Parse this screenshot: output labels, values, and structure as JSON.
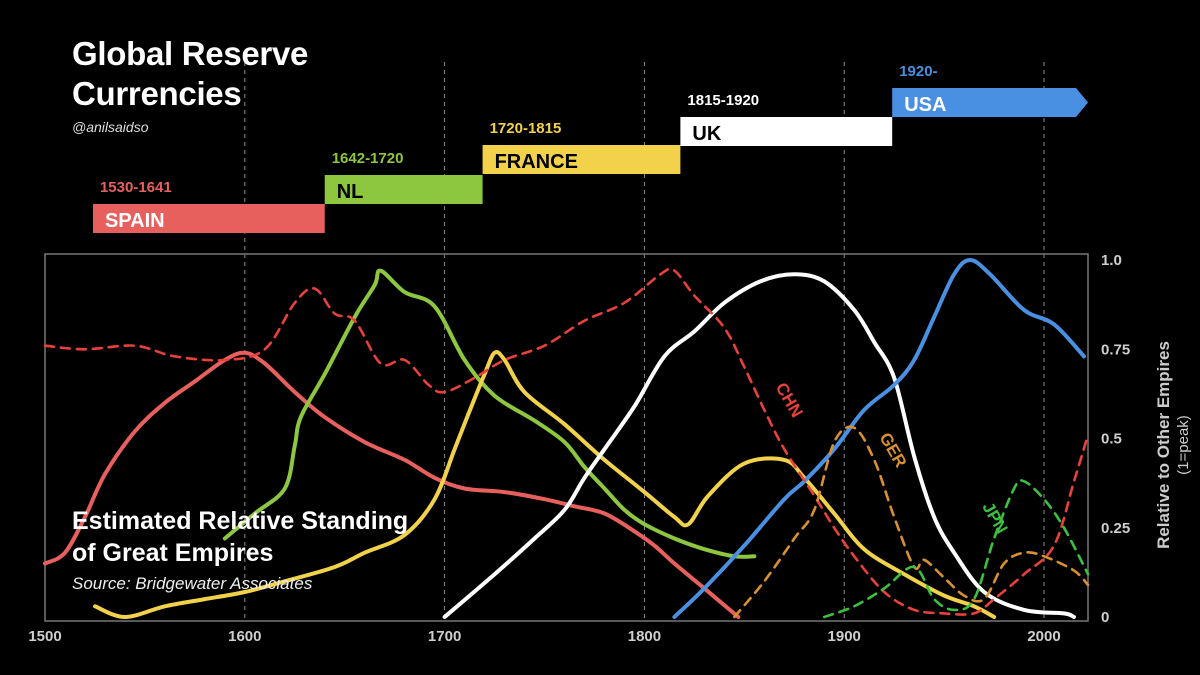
{
  "header": {
    "title_line1": "Global Reserve",
    "title_line2": "Currencies",
    "handle": "@anilsaidso"
  },
  "caption": {
    "line1": "Estimated Relative Standing",
    "line2": "of Great Empires",
    "source": "Source: Bridgewater Associates"
  },
  "chart_data": {
    "type": "line",
    "title": "Global Reserve Currencies",
    "subtitle": "Estimated Relative Standing of Great Empires",
    "xlabel": "",
    "ylabel": "Relative to Other Empires",
    "ylabel_note": "(1=peak)",
    "xlim": [
      1500,
      2022
    ],
    "ylim": [
      0,
      1
    ],
    "x_ticks": [
      "1500",
      "1600",
      "1700",
      "1800",
      "1900",
      "2000"
    ],
    "y_ticks": [
      "1.0",
      "0.75",
      "0.5",
      "0.25",
      "0"
    ],
    "reserve_periods": [
      {
        "name": "SPAIN",
        "years": "1530-1641",
        "start": 1524,
        "end": 1640,
        "color": "#e8605e"
      },
      {
        "name": "NL",
        "years": "1642-1720",
        "start": 1640,
        "end": 1719,
        "color": "#8dc63f"
      },
      {
        "name": "FRANCE",
        "years": "1720-1815",
        "start": 1719,
        "end": 1818,
        "color": "#f2d24a"
      },
      {
        "name": "UK",
        "years": "1815-1920",
        "start": 1818,
        "end": 1924,
        "color": "#ffffff"
      },
      {
        "name": "USA",
        "years": "1920-",
        "start": 1924,
        "end": 2022,
        "color": "#4a90e2",
        "arrow": true
      }
    ],
    "series": [
      {
        "name": "SPAIN",
        "color": "#e8605e",
        "dashed": false,
        "points": [
          [
            1500,
            0.15
          ],
          [
            1510,
            0.18
          ],
          [
            1520,
            0.28
          ],
          [
            1530,
            0.4
          ],
          [
            1545,
            0.52
          ],
          [
            1560,
            0.6
          ],
          [
            1575,
            0.66
          ],
          [
            1590,
            0.72
          ],
          [
            1600,
            0.74
          ],
          [
            1610,
            0.71
          ],
          [
            1625,
            0.63
          ],
          [
            1640,
            0.56
          ],
          [
            1660,
            0.49
          ],
          [
            1680,
            0.44
          ],
          [
            1695,
            0.39
          ],
          [
            1710,
            0.36
          ],
          [
            1730,
            0.35
          ],
          [
            1750,
            0.33
          ],
          [
            1765,
            0.31
          ],
          [
            1780,
            0.29
          ],
          [
            1795,
            0.24
          ],
          [
            1805,
            0.2
          ],
          [
            1815,
            0.15
          ],
          [
            1830,
            0.08
          ],
          [
            1847,
            0.0
          ]
        ]
      },
      {
        "name": "NL",
        "color": "#8dc63f",
        "dashed": false,
        "points": [
          [
            1590,
            0.22
          ],
          [
            1605,
            0.29
          ],
          [
            1620,
            0.36
          ],
          [
            1625,
            0.48
          ],
          [
            1628,
            0.56
          ],
          [
            1640,
            0.68
          ],
          [
            1655,
            0.84
          ],
          [
            1665,
            0.93
          ],
          [
            1668,
            0.97
          ],
          [
            1680,
            0.91
          ],
          [
            1695,
            0.87
          ],
          [
            1710,
            0.72
          ],
          [
            1725,
            0.62
          ],
          [
            1745,
            0.55
          ],
          [
            1760,
            0.49
          ],
          [
            1770,
            0.42
          ],
          [
            1780,
            0.36
          ],
          [
            1790,
            0.3
          ],
          [
            1800,
            0.26
          ],
          [
            1815,
            0.22
          ],
          [
            1830,
            0.19
          ],
          [
            1845,
            0.17
          ],
          [
            1855,
            0.17
          ]
        ]
      },
      {
        "name": "FRANCE",
        "color": "#f2d24a",
        "dashed": false,
        "points": [
          [
            1525,
            0.03
          ],
          [
            1540,
            0.0
          ],
          [
            1560,
            0.03
          ],
          [
            1580,
            0.05
          ],
          [
            1600,
            0.07
          ],
          [
            1620,
            0.1
          ],
          [
            1645,
            0.14
          ],
          [
            1660,
            0.18
          ],
          [
            1680,
            0.23
          ],
          [
            1695,
            0.33
          ],
          [
            1705,
            0.47
          ],
          [
            1712,
            0.57
          ],
          [
            1720,
            0.68
          ],
          [
            1725,
            0.74
          ],
          [
            1730,
            0.72
          ],
          [
            1740,
            0.63
          ],
          [
            1760,
            0.54
          ],
          [
            1780,
            0.44
          ],
          [
            1800,
            0.35
          ],
          [
            1815,
            0.28
          ],
          [
            1822,
            0.26
          ],
          [
            1832,
            0.34
          ],
          [
            1850,
            0.43
          ],
          [
            1870,
            0.44
          ],
          [
            1880,
            0.39
          ],
          [
            1895,
            0.29
          ],
          [
            1910,
            0.19
          ],
          [
            1930,
            0.12
          ],
          [
            1950,
            0.06
          ],
          [
            1965,
            0.03
          ],
          [
            1975,
            0.0
          ]
        ]
      },
      {
        "name": "UK",
        "color": "#ffffff",
        "dashed": false,
        "points": [
          [
            1700,
            0.0
          ],
          [
            1725,
            0.12
          ],
          [
            1745,
            0.22
          ],
          [
            1760,
            0.3
          ],
          [
            1770,
            0.39
          ],
          [
            1780,
            0.47
          ],
          [
            1795,
            0.59
          ],
          [
            1810,
            0.73
          ],
          [
            1825,
            0.8
          ],
          [
            1840,
            0.88
          ],
          [
            1858,
            0.94
          ],
          [
            1875,
            0.96
          ],
          [
            1890,
            0.94
          ],
          [
            1905,
            0.86
          ],
          [
            1915,
            0.77
          ],
          [
            1925,
            0.67
          ],
          [
            1935,
            0.45
          ],
          [
            1945,
            0.28
          ],
          [
            1955,
            0.18
          ],
          [
            1970,
            0.07
          ],
          [
            1990,
            0.02
          ],
          [
            2010,
            0.01
          ],
          [
            2015,
            0.0
          ]
        ]
      },
      {
        "name": "USA",
        "color": "#4a90e2",
        "dashed": false,
        "points": [
          [
            1815,
            0.0
          ],
          [
            1830,
            0.08
          ],
          [
            1850,
            0.2
          ],
          [
            1870,
            0.33
          ],
          [
            1880,
            0.38
          ],
          [
            1895,
            0.47
          ],
          [
            1910,
            0.58
          ],
          [
            1925,
            0.65
          ],
          [
            1935,
            0.72
          ],
          [
            1945,
            0.84
          ],
          [
            1955,
            0.96
          ],
          [
            1963,
            1.0
          ],
          [
            1973,
            0.96
          ],
          [
            1990,
            0.86
          ],
          [
            2005,
            0.82
          ],
          [
            2020,
            0.73
          ]
        ]
      },
      {
        "name": "CHN",
        "color": "#e8403a",
        "dashed": true,
        "points": [
          [
            1500,
            0.76
          ],
          [
            1520,
            0.75
          ],
          [
            1545,
            0.76
          ],
          [
            1565,
            0.73
          ],
          [
            1590,
            0.72
          ],
          [
            1610,
            0.75
          ],
          [
            1625,
            0.88
          ],
          [
            1635,
            0.92
          ],
          [
            1645,
            0.85
          ],
          [
            1655,
            0.83
          ],
          [
            1668,
            0.71
          ],
          [
            1680,
            0.72
          ],
          [
            1692,
            0.65
          ],
          [
            1700,
            0.63
          ],
          [
            1715,
            0.67
          ],
          [
            1730,
            0.72
          ],
          [
            1750,
            0.76
          ],
          [
            1770,
            0.83
          ],
          [
            1790,
            0.88
          ],
          [
            1808,
            0.96
          ],
          [
            1815,
            0.97
          ],
          [
            1825,
            0.9
          ],
          [
            1840,
            0.81
          ],
          [
            1850,
            0.7
          ],
          [
            1860,
            0.58
          ],
          [
            1870,
            0.47
          ],
          [
            1885,
            0.34
          ],
          [
            1895,
            0.25
          ],
          [
            1905,
            0.17
          ],
          [
            1920,
            0.07
          ],
          [
            1935,
            0.02
          ],
          [
            1950,
            0.01
          ],
          [
            1965,
            0.01
          ],
          [
            1975,
            0.05
          ],
          [
            1990,
            0.12
          ],
          [
            2005,
            0.2
          ],
          [
            2015,
            0.38
          ],
          [
            2022,
            0.51
          ]
        ]
      },
      {
        "name": "GER",
        "color": "#d89030",
        "dashed": true,
        "points": [
          [
            1845,
            0.0
          ],
          [
            1860,
            0.1
          ],
          [
            1875,
            0.22
          ],
          [
            1885,
            0.3
          ],
          [
            1895,
            0.49
          ],
          [
            1905,
            0.53
          ],
          [
            1915,
            0.44
          ],
          [
            1925,
            0.28
          ],
          [
            1935,
            0.14
          ],
          [
            1940,
            0.16
          ],
          [
            1950,
            0.11
          ],
          [
            1960,
            0.06
          ],
          [
            1970,
            0.05
          ],
          [
            1980,
            0.15
          ],
          [
            1990,
            0.18
          ],
          [
            2000,
            0.17
          ],
          [
            2015,
            0.13
          ],
          [
            2022,
            0.09
          ]
        ]
      },
      {
        "name": "JPN",
        "color": "#3cc13c",
        "dashed": true,
        "points": [
          [
            1890,
            0.0
          ],
          [
            1905,
            0.03
          ],
          [
            1920,
            0.08
          ],
          [
            1935,
            0.14
          ],
          [
            1945,
            0.05
          ],
          [
            1955,
            0.02
          ],
          [
            1965,
            0.05
          ],
          [
            1975,
            0.22
          ],
          [
            1985,
            0.36
          ],
          [
            1990,
            0.38
          ],
          [
            2000,
            0.33
          ],
          [
            2010,
            0.25
          ],
          [
            2022,
            0.12
          ]
        ]
      }
    ],
    "annotations": [
      {
        "text": "CHN",
        "color": "#e8403a"
      },
      {
        "text": "GER",
        "color": "#d89030"
      },
      {
        "text": "JPN",
        "color": "#3cc13c"
      }
    ]
  }
}
